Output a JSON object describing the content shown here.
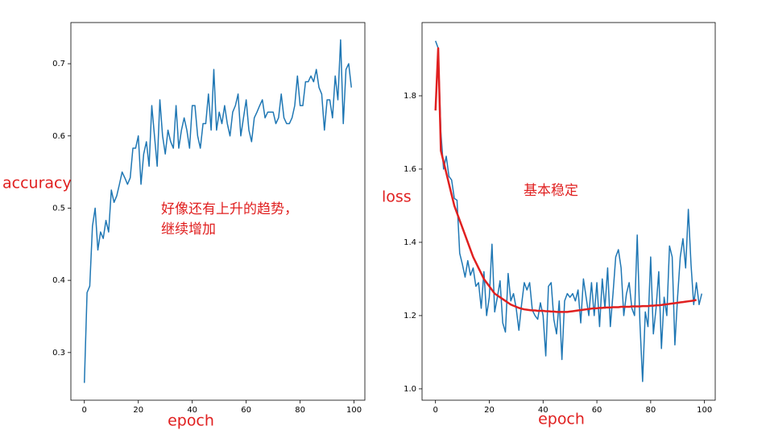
{
  "chart_data": [
    {
      "type": "line",
      "xlabel": "epoch",
      "ylabel": "accuracy",
      "annotation": [
        "好像还有上升的趋势，",
        "继续增加"
      ],
      "xlim": [
        -5,
        104
      ],
      "ylim": [
        0.234,
        0.757
      ],
      "xticks": [
        0,
        20,
        40,
        60,
        80,
        100
      ],
      "yticks": [
        0.3,
        0.4,
        0.5,
        0.6,
        0.7
      ],
      "x": [
        0,
        1,
        2,
        3,
        4,
        5,
        6,
        7,
        8,
        9,
        10,
        11,
        12,
        13,
        14,
        15,
        16,
        17,
        18,
        19,
        20,
        21,
        22,
        23,
        24,
        25,
        26,
        27,
        28,
        29,
        30,
        31,
        32,
        33,
        34,
        35,
        36,
        37,
        38,
        39,
        40,
        41,
        42,
        43,
        44,
        45,
        46,
        47,
        48,
        49,
        50,
        51,
        52,
        53,
        54,
        55,
        56,
        57,
        58,
        59,
        60,
        61,
        62,
        63,
        64,
        65,
        66,
        67,
        68,
        69,
        70,
        71,
        72,
        73,
        74,
        75,
        76,
        77,
        78,
        79,
        80,
        81,
        82,
        83,
        84,
        85,
        86,
        87,
        88,
        89,
        90,
        91,
        92,
        93,
        94,
        95,
        96,
        97,
        98,
        99
      ],
      "series": [
        {
          "color": "#1f77b4",
          "values": [
            0.258,
            0.383,
            0.392,
            0.475,
            0.5,
            0.442,
            0.467,
            0.458,
            0.483,
            0.467,
            0.525,
            0.508,
            0.517,
            0.533,
            0.55,
            0.542,
            0.533,
            0.542,
            0.583,
            0.583,
            0.6,
            0.533,
            0.575,
            0.592,
            0.558,
            0.642,
            0.6,
            0.558,
            0.65,
            0.6,
            0.575,
            0.608,
            0.592,
            0.583,
            0.642,
            0.583,
            0.608,
            0.625,
            0.608,
            0.583,
            0.642,
            0.642,
            0.6,
            0.583,
            0.617,
            0.617,
            0.658,
            0.608,
            0.692,
            0.608,
            0.633,
            0.617,
            0.642,
            0.617,
            0.6,
            0.633,
            0.642,
            0.658,
            0.6,
            0.625,
            0.65,
            0.608,
            0.592,
            0.625,
            0.633,
            0.642,
            0.65,
            0.625,
            0.633,
            0.633,
            0.633,
            0.617,
            0.625,
            0.658,
            0.625,
            0.617,
            0.617,
            0.625,
            0.642,
            0.683,
            0.642,
            0.642,
            0.675,
            0.675,
            0.683,
            0.675,
            0.692,
            0.667,
            0.658,
            0.608,
            0.65,
            0.65,
            0.625,
            0.683,
            0.65,
            0.733,
            0.617,
            0.692,
            0.7,
            0.667
          ]
        }
      ]
    },
    {
      "type": "line",
      "xlabel": "epoch",
      "ylabel": "loss",
      "annotation": [
        "基本稳定"
      ],
      "xlim": [
        -5,
        104
      ],
      "ylim": [
        0.969,
        2.0
      ],
      "xticks": [
        0,
        20,
        40,
        60,
        80,
        100
      ],
      "yticks": [
        {
          "value": 1,
          "label": "1.0"
        },
        1.2,
        1.4,
        1.6,
        1.8
      ],
      "x": [
        0,
        1,
        2,
        3,
        4,
        5,
        6,
        7,
        8,
        9,
        10,
        11,
        12,
        13,
        14,
        15,
        16,
        17,
        18,
        19,
        20,
        21,
        22,
        23,
        24,
        25,
        26,
        27,
        28,
        29,
        30,
        31,
        32,
        33,
        34,
        35,
        36,
        37,
        38,
        39,
        40,
        41,
        42,
        43,
        44,
        45,
        46,
        47,
        48,
        49,
        50,
        51,
        52,
        53,
        54,
        55,
        56,
        57,
        58,
        59,
        60,
        61,
        62,
        63,
        64,
        65,
        66,
        67,
        68,
        69,
        70,
        71,
        72,
        73,
        74,
        75,
        76,
        77,
        78,
        79,
        80,
        81,
        82,
        83,
        84,
        85,
        86,
        87,
        88,
        89,
        90,
        91,
        92,
        93,
        94,
        95,
        96,
        97,
        98,
        99
      ],
      "series": [
        {
          "color": "#1f77b4",
          "width": 1.5,
          "values": [
            1.95,
            1.93,
            1.7,
            1.6,
            1.635,
            1.58,
            1.57,
            1.52,
            1.515,
            1.37,
            1.34,
            1.305,
            1.35,
            1.31,
            1.33,
            1.28,
            1.29,
            1.22,
            1.32,
            1.2,
            1.25,
            1.395,
            1.21,
            1.25,
            1.295,
            1.18,
            1.155,
            1.315,
            1.24,
            1.26,
            1.22,
            1.16,
            1.23,
            1.29,
            1.27,
            1.29,
            1.215,
            1.2,
            1.19,
            1.235,
            1.2,
            1.09,
            1.28,
            1.29,
            1.19,
            1.15,
            1.24,
            1.08,
            1.24,
            1.26,
            1.25,
            1.26,
            1.24,
            1.27,
            1.18,
            1.3,
            1.25,
            1.2,
            1.29,
            1.2,
            1.29,
            1.17,
            1.3,
            1.22,
            1.33,
            1.17,
            1.26,
            1.36,
            1.38,
            1.33,
            1.2,
            1.26,
            1.29,
            1.22,
            1.2,
            1.42,
            1.18,
            1.02,
            1.21,
            1.17,
            1.36,
            1.15,
            1.22,
            1.32,
            1.11,
            1.25,
            1.2,
            1.39,
            1.36,
            1.12,
            1.25,
            1.36,
            1.41,
            1.33,
            1.49,
            1.34,
            1.23,
            1.29,
            1.23,
            1.26
          ]
        },
        {
          "color": "#e02020",
          "width": 2.5,
          "values": [
            1.76,
            1.93,
            1.65,
            1.62,
            1.59,
            1.56,
            1.53,
            1.5,
            1.48,
            1.46,
            1.44,
            1.42,
            1.4,
            1.38,
            1.36,
            1.345,
            1.33,
            1.315,
            1.3,
            1.29,
            1.28,
            1.27,
            1.26,
            1.255,
            1.25,
            1.245,
            1.24,
            1.235,
            1.23,
            1.227,
            1.224,
            1.221,
            1.219,
            1.217,
            1.216,
            1.215,
            1.214,
            1.214,
            1.213,
            1.213,
            1.213,
            1.212,
            1.212,
            1.211,
            1.211,
            1.21,
            1.21,
            1.21,
            1.21,
            1.21,
            1.211,
            1.212,
            1.213,
            1.214,
            1.215,
            1.216,
            1.217,
            1.218,
            1.219,
            1.22,
            1.22,
            1.221,
            1.221,
            1.222,
            1.222,
            1.222,
            1.223,
            1.223,
            1.223,
            1.224,
            1.224,
            1.224,
            1.224,
            1.225,
            1.225,
            1.225,
            1.225,
            1.226,
            1.226,
            1.226,
            1.227,
            1.227,
            1.228,
            1.228,
            1.229,
            1.23,
            1.231,
            1.232,
            1.233,
            1.234,
            1.235,
            1.236,
            1.237,
            1.238,
            1.239,
            1.24,
            1.241,
            1.243,
            null,
            null
          ]
        }
      ]
    }
  ]
}
